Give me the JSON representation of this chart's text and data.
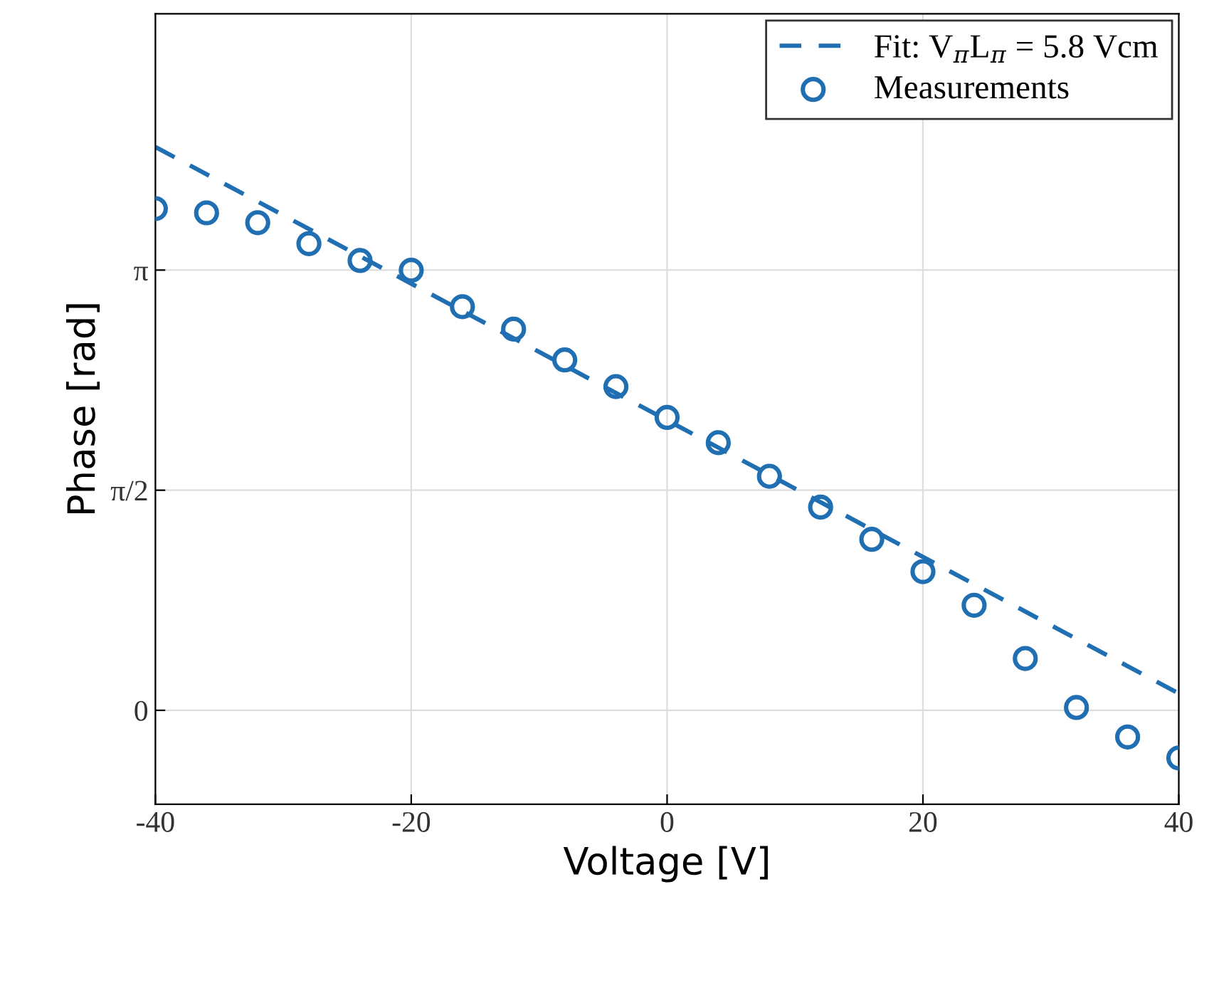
{
  "chart_data": {
    "type": "scatter",
    "xlabel": "Voltage [V]",
    "ylabel": "Phase [rad]",
    "xlim": [
      -40,
      40
    ],
    "xticks": [
      -40,
      -20,
      0,
      20,
      40
    ],
    "ylim": [
      -0.67,
      4.97
    ],
    "yticks": [
      0,
      {
        "value": 1.5708,
        "label": "π/2"
      },
      {
        "value": 3.1416,
        "label": "π"
      }
    ],
    "grid": true,
    "legend": "top right",
    "series": [
      {
        "name": "Fit: V$_{π}$L$_{π}$ = 5.8 Vcm",
        "type": "line",
        "line_style": "dashed",
        "color": "#1f6fb2",
        "x": [
          -40,
          40
        ],
        "values": [
          4.02,
          0.12
        ]
      },
      {
        "name": "Measurements",
        "marker": "circle",
        "color": "#1f6fb2",
        "x": [
          -40,
          -36,
          -32,
          -28,
          -24,
          -20,
          -16,
          -12,
          -8,
          -4,
          0,
          4,
          8,
          12,
          16,
          20,
          24,
          28,
          32,
          36,
          40
        ],
        "values": [
          3.58,
          3.55,
          3.48,
          3.33,
          3.21,
          3.14,
          2.88,
          2.72,
          2.5,
          2.31,
          2.09,
          1.91,
          1.67,
          1.45,
          1.22,
          0.99,
          0.75,
          0.37,
          0.02,
          -0.19,
          -0.34
        ]
      }
    ]
  }
}
